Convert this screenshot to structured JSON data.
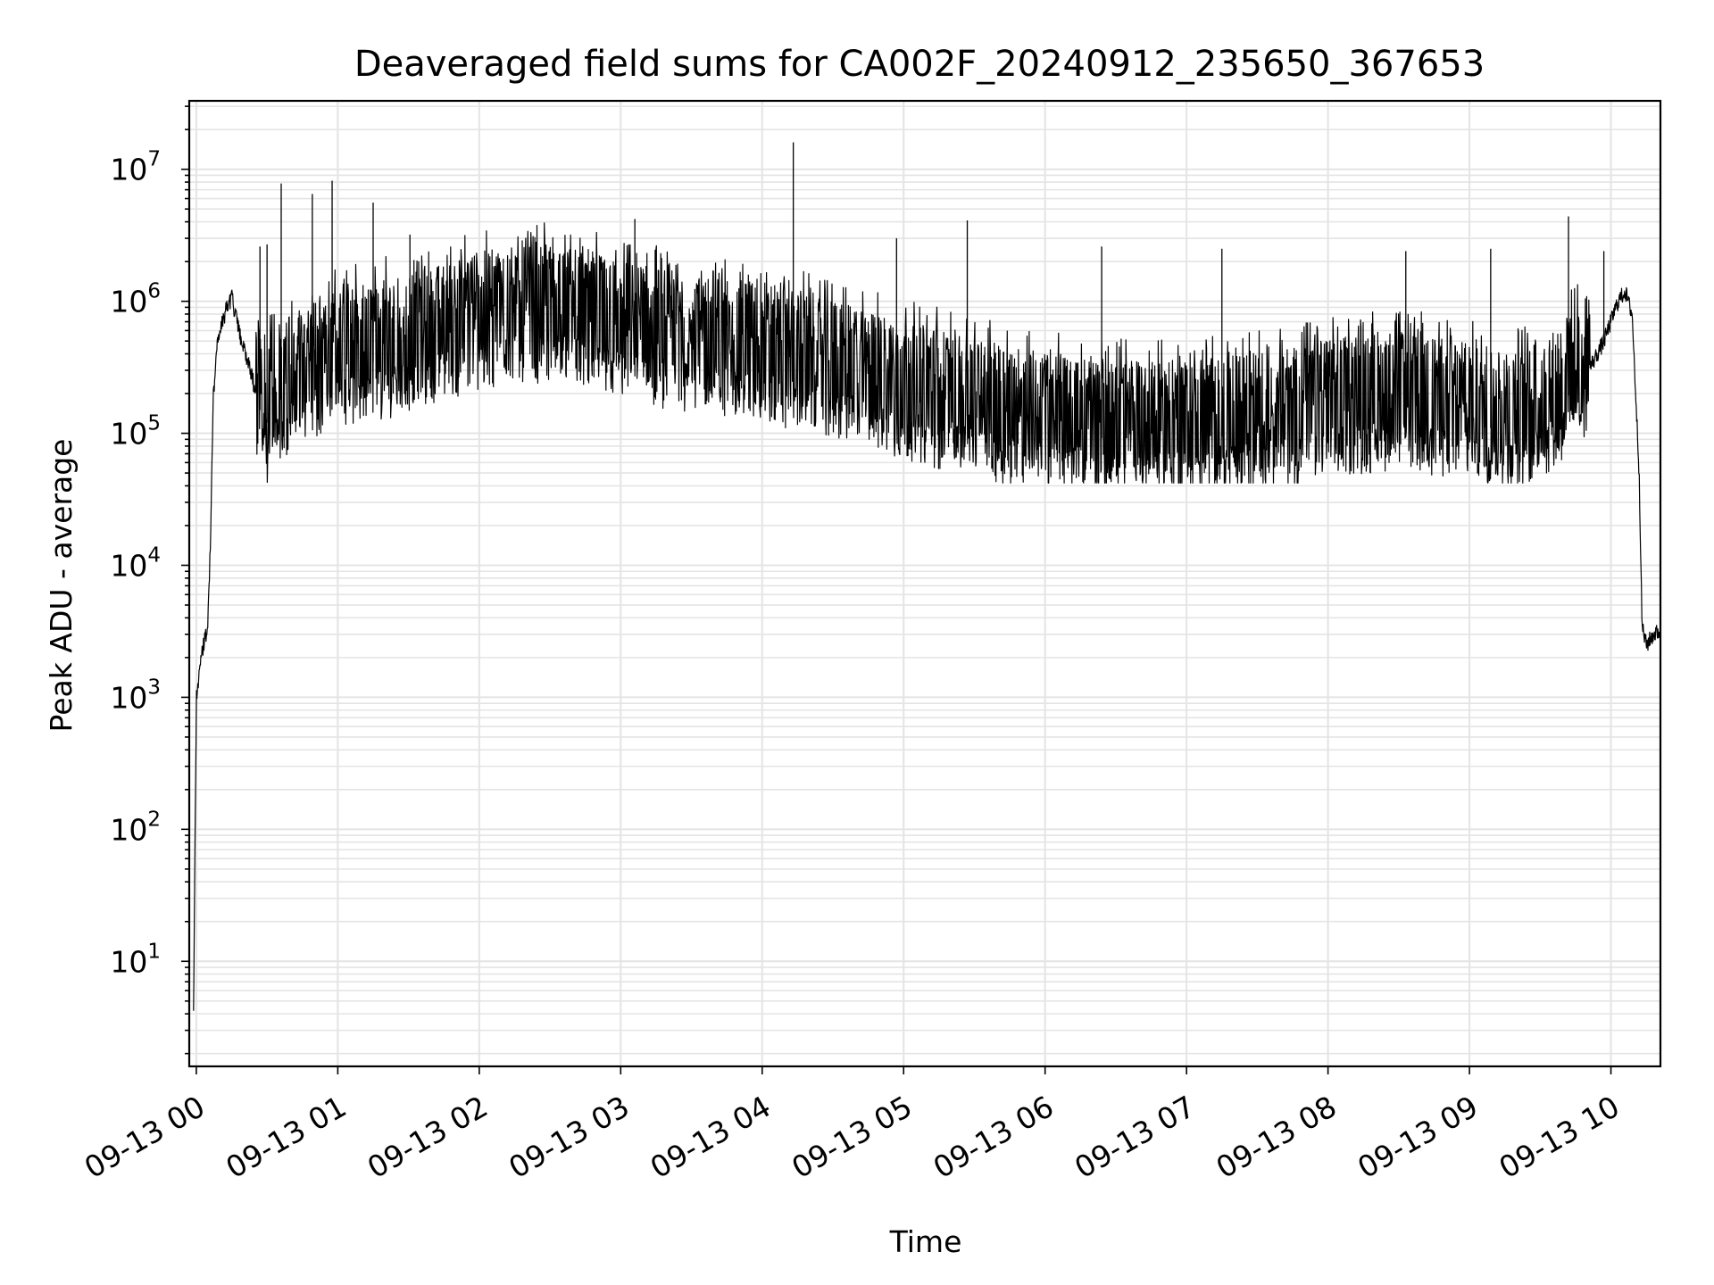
{
  "chart_data": {
    "type": "line",
    "title": "Deaveraged field sums for CA002F_20240912_235650_367653",
    "xlabel": "Time",
    "ylabel": "Peak ADU - average",
    "yscale": "log",
    "ylim": [
      1.6,
      33000000
    ],
    "xlim": [
      "09-12 23:57",
      "09-13 10:21"
    ],
    "grid": true,
    "line_color": "#000000",
    "x_ticks": [
      "09-13 00",
      "09-13 01",
      "09-13 02",
      "09-13 03",
      "09-13 04",
      "09-13 05",
      "09-13 06",
      "09-13 07",
      "09-13 08",
      "09-13 09",
      "09-13 10"
    ],
    "y_ticks": [
      {
        "base": "10",
        "exp": "1"
      },
      {
        "base": "10",
        "exp": "2"
      },
      {
        "base": "10",
        "exp": "3"
      },
      {
        "base": "10",
        "exp": "4"
      },
      {
        "base": "10",
        "exp": "5"
      },
      {
        "base": "10",
        "exp": "6"
      },
      {
        "base": "10",
        "exp": "7"
      }
    ],
    "series": [
      {
        "x_hours_after_midnight": [
          -0.02,
          0.0,
          0.03,
          0.05,
          0.08,
          0.1,
          0.12,
          0.15,
          0.2,
          0.25,
          0.3,
          0.35,
          0.4,
          0.45,
          0.5,
          0.6,
          0.8,
          1.0,
          1.5,
          2.0,
          2.5,
          3.0,
          3.5,
          4.0,
          4.5,
          5.0,
          5.5,
          6.0,
          6.5,
          7.0,
          7.5,
          8.0,
          8.5,
          9.0,
          9.3,
          9.6,
          9.8,
          9.95,
          10.05,
          10.1,
          10.15,
          10.2,
          10.22,
          10.25,
          10.3,
          10.35
        ],
        "values": [
          4,
          1000,
          1800,
          2500,
          3500,
          15000,
          200000,
          500000,
          800000,
          1100000,
          600000,
          400000,
          250000,
          150000,
          120000,
          180000,
          250000,
          300000,
          400000,
          600000,
          700000,
          500000,
          400000,
          350000,
          250000,
          180000,
          130000,
          100000,
          90000,
          90000,
          100000,
          130000,
          150000,
          120000,
          100000,
          150000,
          250000,
          500000,
          1000000,
          1200000,
          800000,
          50000,
          3500,
          2500,
          3000,
          3200
        ]
      }
    ],
    "spikes": [
      {
        "x": 0.6,
        "value": 7800000
      },
      {
        "x": 0.82,
        "value": 6500000
      },
      {
        "x": 0.96,
        "value": 8200000
      },
      {
        "x": 1.25,
        "value": 5600000
      },
      {
        "x": 1.51,
        "value": 3200000
      },
      {
        "x": 3.1,
        "value": 4200000
      },
      {
        "x": 4.22,
        "value": 16000000
      },
      {
        "x": 5.45,
        "value": 4100000
      },
      {
        "x": 9.7,
        "value": 4400000
      },
      {
        "x": 0.5,
        "value": 2700000
      },
      {
        "x": 0.45,
        "value": 2600000
      },
      {
        "x": 4.95,
        "value": 3000000
      },
      {
        "x": 6.4,
        "value": 2600000
      },
      {
        "x": 7.25,
        "value": 2500000
      },
      {
        "x": 8.55,
        "value": 2400000
      },
      {
        "x": 9.15,
        "value": 2500000
      },
      {
        "x": 9.95,
        "value": 2400000
      }
    ]
  }
}
